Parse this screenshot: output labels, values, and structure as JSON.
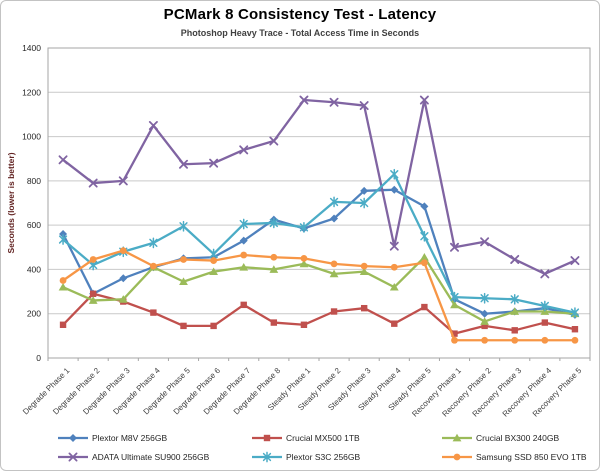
{
  "chart_data": {
    "type": "line",
    "title": "PCMark 8 Consistency Test - Latency",
    "subtitle": "Photoshop Heavy Trace - Total Access Time in Seconds",
    "ylabel": "Seconds (lower is better)",
    "xlabel": "",
    "ylim": [
      0,
      1400
    ],
    "y_ticks": [
      0,
      200,
      400,
      600,
      800,
      1000,
      1200,
      1400
    ],
    "grid": true,
    "legend_position": "bottom",
    "categories": [
      "Degrade Phase 1",
      "Degrade Phase 2",
      "Degrade Phase 3",
      "Degrade Phase 4",
      "Degrade Phase 5",
      "Degrade Phase 6",
      "Degrade Phase 7",
      "Degrade Phase 8",
      "Steady Phase 1",
      "Steady Phase 2",
      "Steady Phase 3",
      "Steady Phase 4",
      "Steady Phase 5",
      "Recovery Phase 1",
      "Recovery Phase 2",
      "Recovery Phase 3",
      "Recovery Phase 4",
      "Recovery Phase 5"
    ],
    "series": [
      {
        "name": "Plextor M8V 256GB",
        "color": "#4F81BD",
        "marker": "diamond",
        "values": [
          560,
          290,
          360,
          410,
          450,
          455,
          530,
          625,
          585,
          630,
          755,
          760,
          685,
          265,
          200,
          210,
          225,
          195
        ]
      },
      {
        "name": "Crucial MX500 1TB",
        "color": "#C0504D",
        "marker": "square",
        "values": [
          150,
          290,
          255,
          205,
          145,
          145,
          240,
          160,
          150,
          210,
          225,
          155,
          230,
          110,
          145,
          125,
          160,
          130
        ]
      },
      {
        "name": "Crucial BX300 240GB",
        "color": "#9BBB59",
        "marker": "triangle",
        "values": [
          320,
          260,
          265,
          410,
          345,
          390,
          410,
          400,
          425,
          380,
          390,
          320,
          455,
          240,
          165,
          210,
          210,
          200
        ]
      },
      {
        "name": "ADATA Ultimate SU900 256GB",
        "color": "#8064A2",
        "marker": "x",
        "values": [
          895,
          790,
          800,
          1050,
          875,
          880,
          940,
          980,
          1165,
          1155,
          1140,
          505,
          1165,
          500,
          525,
          445,
          380,
          440
        ]
      },
      {
        "name": "Plextor S3C 256GB",
        "color": "#4BACC6",
        "marker": "star",
        "values": [
          535,
          420,
          480,
          520,
          595,
          470,
          605,
          610,
          590,
          705,
          700,
          830,
          550,
          275,
          270,
          265,
          235,
          205
        ]
      },
      {
        "name": "Samsung SSD 850 EVO 1TB",
        "color": "#F79646",
        "marker": "circle",
        "values": [
          350,
          445,
          485,
          415,
          445,
          440,
          465,
          455,
          450,
          425,
          415,
          410,
          430,
          80,
          80,
          80,
          80,
          80
        ]
      }
    ]
  },
  "style": {
    "gridline_color": "#C9C9C9",
    "axis_color": "#A6A6A6",
    "tick_label_color": "#262626",
    "category_label_color": "#3F3F3F"
  }
}
